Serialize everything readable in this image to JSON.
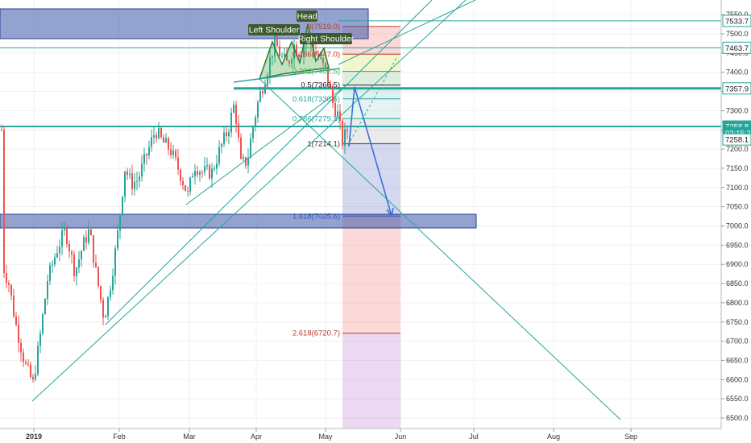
{
  "chart_data": {
    "type": "candlestick",
    "y_ticks": [
      6500,
      6550,
      6600,
      6650,
      6700,
      6750,
      6800,
      6850,
      6900,
      6950,
      7000,
      7050,
      7100,
      7150,
      7200,
      7250,
      7300,
      7350,
      7400,
      7450,
      7500,
      7550
    ],
    "y_tick_labels": [
      "6500.0",
      "6550.0",
      "6600.0",
      "6650.0",
      "6700.0",
      "6750.0",
      "6800.0",
      "6850.0",
      "6900.0",
      "6950.0",
      "7000.0",
      "7050.0",
      "7100.0",
      "7150.0",
      "7200.0",
      "7250.0",
      "7300.0",
      "7350.0",
      "7400.0",
      "7450.0",
      "7500.0",
      "7550.0"
    ],
    "ylim": [
      6490,
      7560
    ],
    "x_months": [
      "2019",
      "Feb",
      "Mar",
      "Apr",
      "May",
      "Jun",
      "Jul",
      "Aug",
      "Sep"
    ],
    "price_tags": [
      {
        "label": "7533.7",
        "value": 7533.7,
        "style": "outline"
      },
      {
        "label": "7463.7",
        "value": 7463.7,
        "style": "outline"
      },
      {
        "label": "7357.9",
        "value": 7357.9,
        "style": "outline"
      },
      {
        "label": "7258.8",
        "value": 7258.8,
        "style": "teal"
      },
      {
        "label": "02:15:26",
        "value": 7242,
        "style": "teal"
      },
      {
        "label": "7258.1",
        "value": 7225,
        "style": "outline"
      }
    ],
    "fib_levels": [
      {
        "label": "0(7519.0)",
        "value": 7519.0,
        "color": "#c0392b"
      },
      {
        "label": "0.236(7447.0)",
        "value": 7447.0,
        "color": "#c0392b"
      },
      {
        "label": "0.382(7402.5)",
        "value": 7402.5,
        "color": "#4caf50"
      },
      {
        "label": "0.5(7366.5)",
        "value": 7366.5,
        "color": "#222"
      },
      {
        "label": "0.618(7330.6)",
        "value": 7330.6,
        "color": "#26a69a"
      },
      {
        "label": "0.786(7279.3)",
        "value": 7279.3,
        "color": "#26a69a"
      },
      {
        "label": "1(7214.1)",
        "value": 7214.1,
        "color": "#333"
      },
      {
        "label": "1.618(7025.6)",
        "value": 7025.6,
        "color": "#2f56c4"
      },
      {
        "label": "2.618(6720.7)",
        "value": 6720.7,
        "color": "#c0392b"
      }
    ],
    "pattern_labels": [
      "Head",
      "Left Shoulder",
      "Right Shoulder"
    ],
    "colors": {
      "up": "#26a69a",
      "down": "#ef5350",
      "trend": "#26a69a",
      "zone": "#3a55a8"
    }
  }
}
